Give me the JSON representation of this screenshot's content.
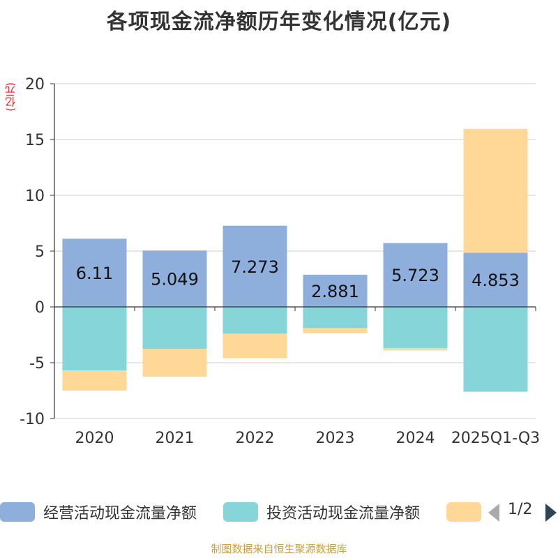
{
  "title": "各项现金流净额历年变化情况(亿元)",
  "y_unit": "(亿元)",
  "source": "制图数据来自恒生聚源数据库",
  "legend_page": "1/2",
  "colors": {
    "operating": "#8eaedc",
    "investing": "#86d5d8",
    "financing": "#ffd898",
    "grid": "#cccccc",
    "axis": "#333333"
  },
  "chart_data": {
    "type": "bar",
    "stacked": true,
    "title": "各项现金流净额历年变化情况(亿元)",
    "ylabel": "(亿元)",
    "ylim": [
      -10,
      20
    ],
    "yticks": [
      20,
      15,
      10,
      5,
      0,
      -5,
      -10
    ],
    "categories": [
      "2020",
      "2021",
      "2022",
      "2023",
      "2024",
      "2025Q1-Q3"
    ],
    "series": [
      {
        "key": "operating",
        "name": "经营活动现金流量净额",
        "values": [
          6.11,
          5.049,
          7.273,
          2.881,
          5.723,
          4.853
        ],
        "labels": [
          "6.11",
          "5.049",
          "7.273",
          "2.881",
          "5.723",
          "4.853"
        ]
      },
      {
        "key": "investing",
        "name": "投资活动现金流量净额",
        "values": [
          -5.7,
          -3.75,
          -2.4,
          -1.9,
          -3.7,
          -7.6
        ]
      },
      {
        "key": "financing",
        "name": "",
        "values": [
          -1.8,
          -2.5,
          -2.2,
          -0.45,
          -0.2,
          11.1
        ]
      }
    ],
    "legend_position": "bottom",
    "grid": true
  }
}
